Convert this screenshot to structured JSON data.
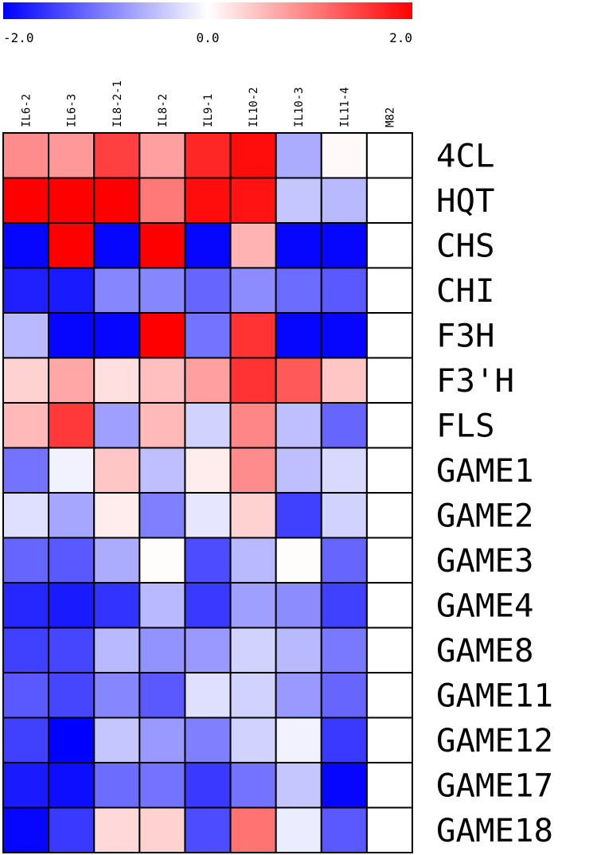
{
  "chart_data": {
    "type": "heatmap",
    "colorscale": {
      "min": -2.0,
      "mid": 0.0,
      "max": 2.0,
      "min_label": "-2.0",
      "mid_label": "0.0",
      "max_label": "2.0",
      "low_color": "#0000ff",
      "mid_color": "#ffffff",
      "high_color": "#ff0000"
    },
    "columns": [
      "IL6-2",
      "IL6-3",
      "IL8-2-1",
      "IL8-2",
      "IL9-1",
      "IL10-2",
      "IL10-3",
      "IL11-4",
      "M82"
    ],
    "rows": [
      "4CL",
      "HQT",
      "CHS",
      "CHI",
      "F3H",
      "F3'H",
      "FLS",
      "GAME1",
      "GAME2",
      "GAME3",
      "GAME4",
      "GAME8",
      "GAME11",
      "GAME12",
      "GAME17",
      "GAME18"
    ],
    "values": [
      [
        0.9,
        0.8,
        1.5,
        0.75,
        1.7,
        1.9,
        -0.65,
        0.05,
        0.0
      ],
      [
        2.0,
        2.0,
        2.0,
        1.05,
        1.9,
        1.85,
        -0.45,
        -0.55,
        0.0
      ],
      [
        -1.95,
        2.0,
        -1.95,
        2.0,
        -1.95,
        0.6,
        -1.95,
        -1.95,
        0.0
      ],
      [
        -1.75,
        -1.8,
        -0.95,
        -0.95,
        -1.2,
        -0.9,
        -1.15,
        -1.3,
        0.0
      ],
      [
        -0.55,
        -1.95,
        -1.95,
        2.0,
        -1.1,
        1.6,
        -1.95,
        -1.95,
        0.0
      ],
      [
        0.35,
        0.7,
        0.25,
        0.5,
        0.75,
        1.6,
        1.3,
        0.45,
        0.0
      ],
      [
        0.55,
        1.55,
        -0.75,
        0.55,
        -0.35,
        0.95,
        -0.5,
        -1.2,
        0.0
      ],
      [
        -1.1,
        -0.1,
        0.45,
        -0.5,
        0.15,
        0.9,
        -0.5,
        -0.3,
        0.0
      ],
      [
        -0.25,
        -0.7,
        0.15,
        -1.0,
        -0.2,
        0.35,
        -1.5,
        -0.35,
        0.0
      ],
      [
        -1.2,
        -1.3,
        -0.65,
        0.02,
        -1.4,
        -0.55,
        0.02,
        -1.2,
        0.0
      ],
      [
        -1.7,
        -1.8,
        -1.6,
        -0.55,
        -1.55,
        -0.75,
        -0.9,
        -1.5,
        0.0
      ],
      [
        -1.5,
        -1.45,
        -0.55,
        -0.85,
        -0.8,
        -0.35,
        -0.55,
        -1.05,
        0.0
      ],
      [
        -1.3,
        -1.45,
        -0.95,
        -1.3,
        -0.25,
        -0.35,
        -0.8,
        -1.2,
        0.0
      ],
      [
        -1.5,
        -2.0,
        -0.45,
        -0.8,
        -1.0,
        -0.35,
        -0.1,
        -1.55,
        0.0
      ],
      [
        -1.8,
        -1.9,
        -1.15,
        -1.1,
        -1.55,
        -1.1,
        -0.45,
        -1.95,
        0.0
      ],
      [
        -1.95,
        -1.55,
        0.3,
        0.35,
        -1.4,
        1.1,
        -0.15,
        -1.3,
        0.0
      ]
    ]
  }
}
